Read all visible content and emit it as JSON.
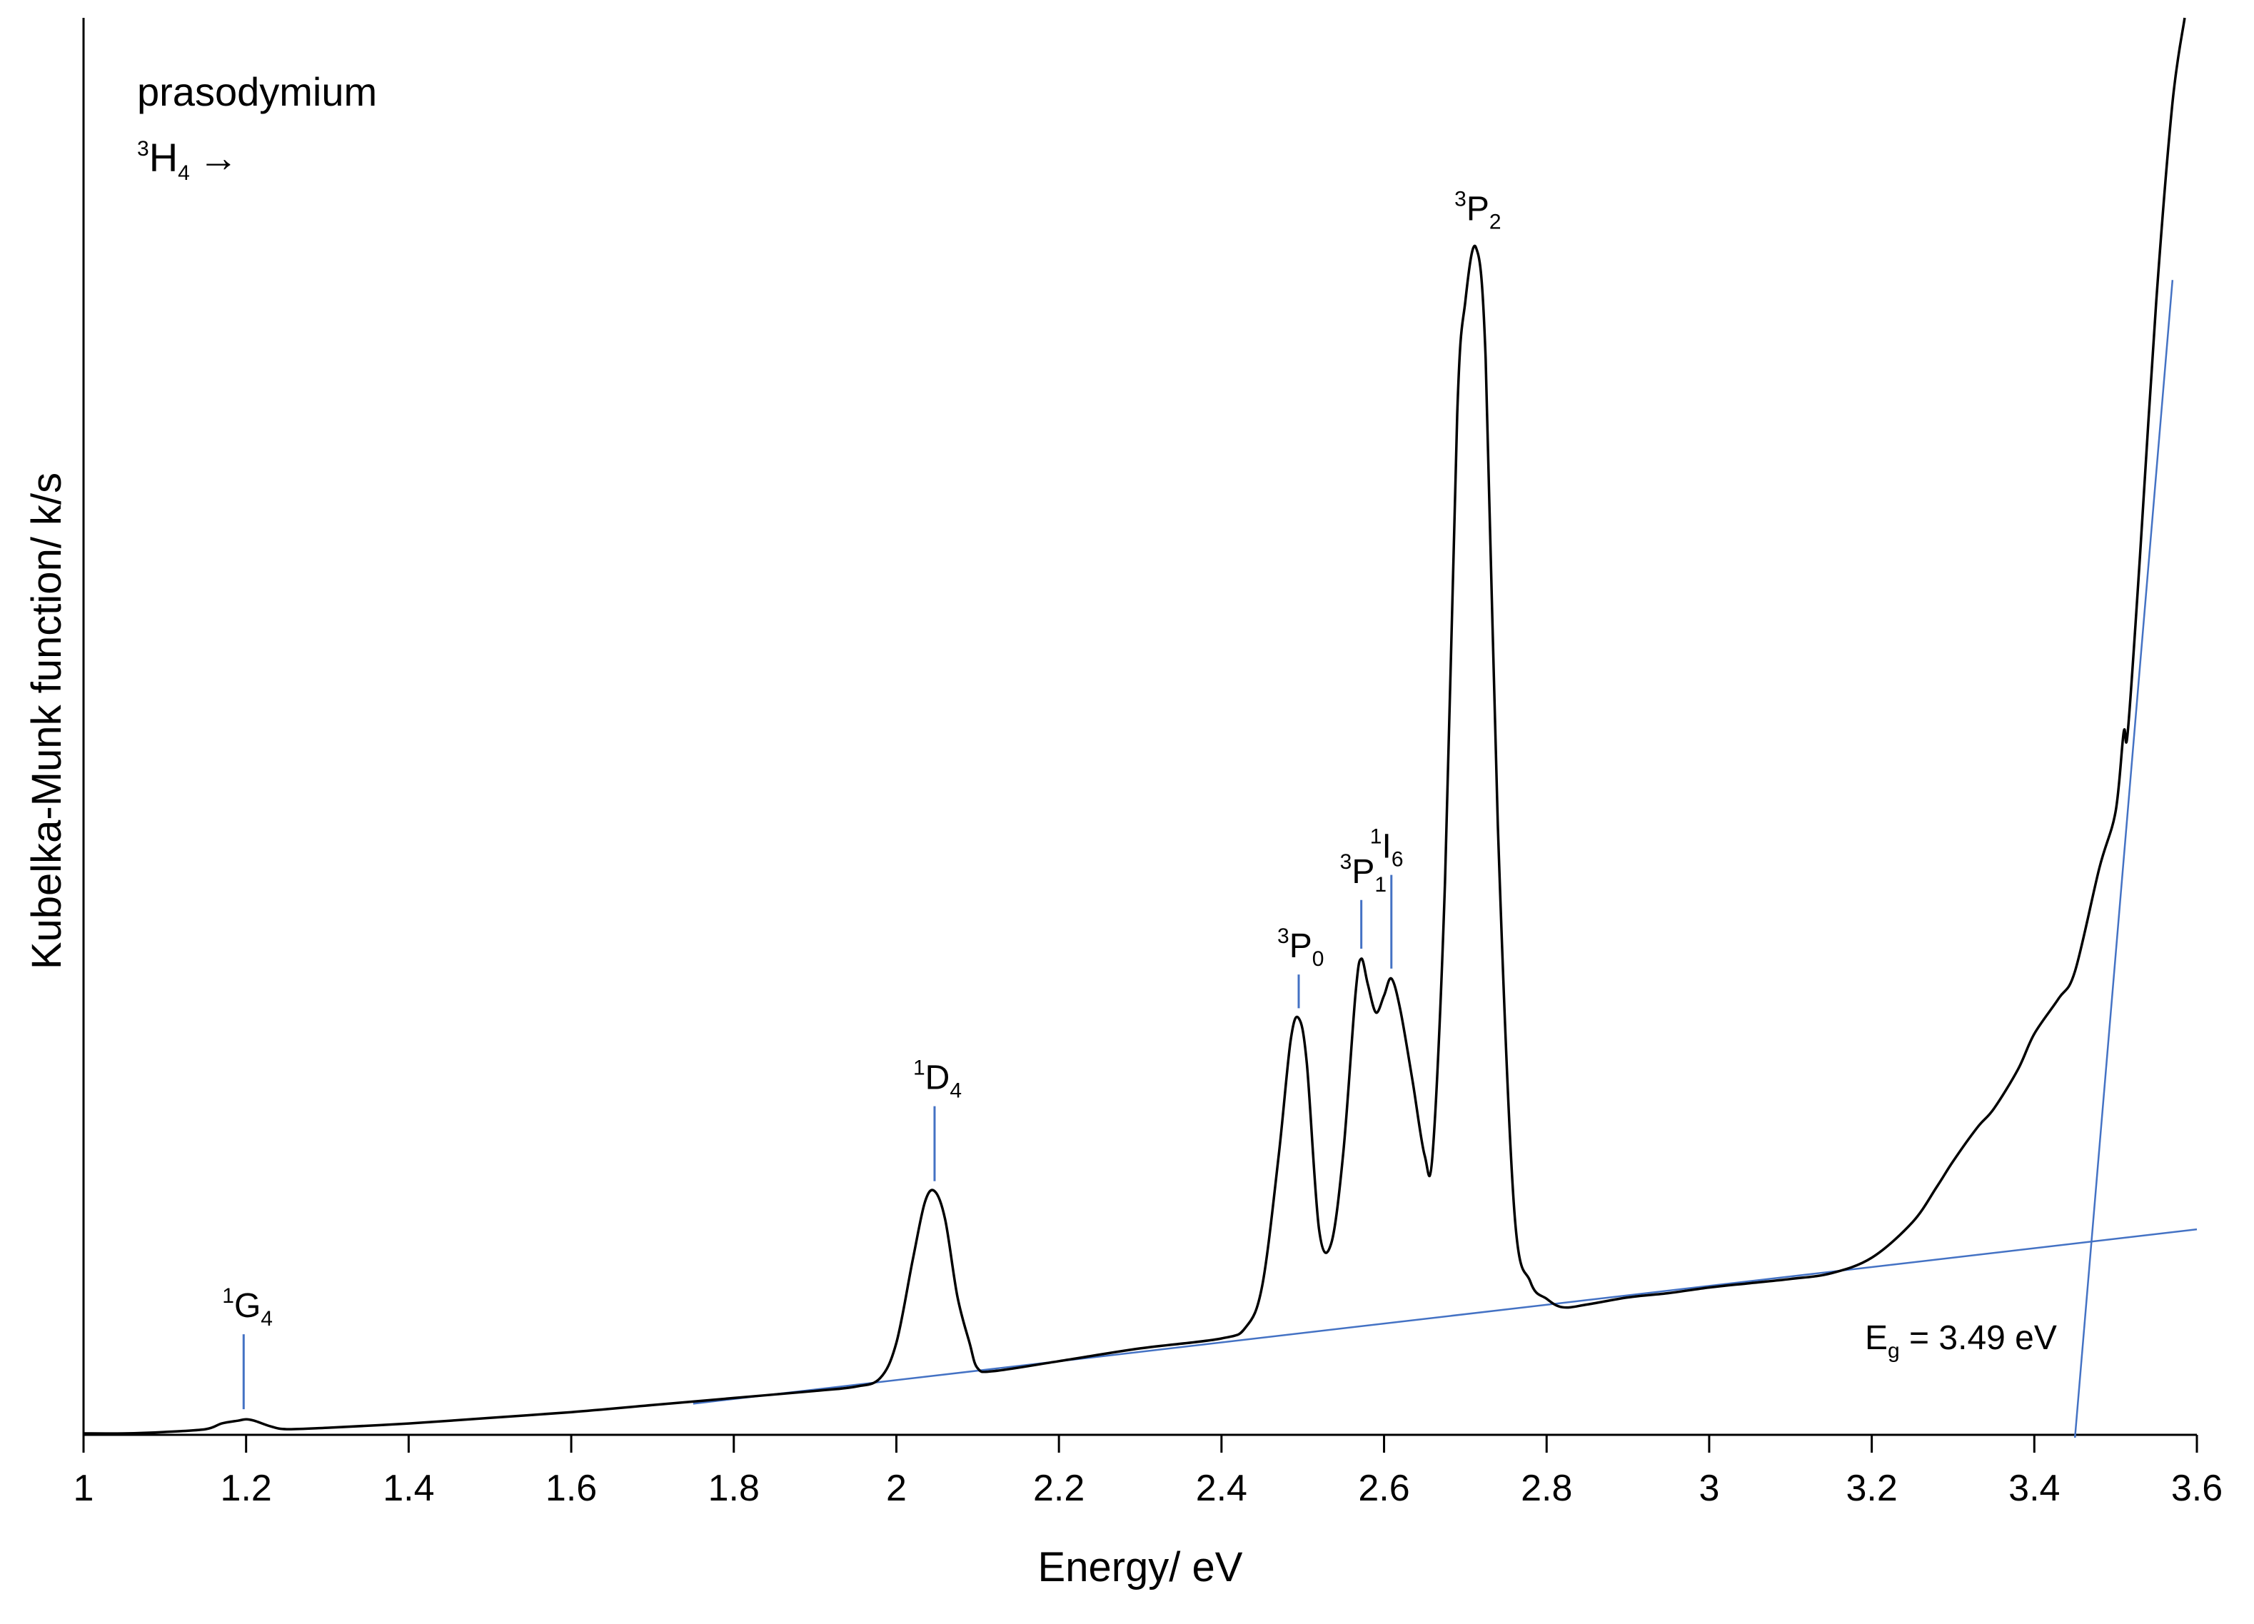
{
  "chart_data": {
    "type": "line",
    "xlabel": "Energy/ eV",
    "ylabel": "Kubelka-Munk function/ k/s",
    "xlim": [
      1,
      3.6
    ],
    "x_ticks": [
      "1",
      "1.2",
      "1.4",
      "1.6",
      "1.8",
      "2",
      "2.2",
      "2.4",
      "2.6",
      "2.8",
      "3",
      "3.2",
      "3.4",
      "3.6"
    ],
    "y_tick_labels": "none",
    "grid": false,
    "legend": "none",
    "annotation_text": {
      "sample": "prasodymium",
      "ground_state": {
        "sup": "3",
        "base": "H",
        "sub": "4",
        "arrow": "→"
      },
      "band_gap": {
        "base": "E",
        "sub": "g",
        "value": " = 3.49 eV"
      }
    },
    "transitions": [
      {
        "sup": "1",
        "base": "G",
        "sub": "4",
        "energy": 1.197,
        "peak_y": 0.011
      },
      {
        "sup": "1",
        "base": "D",
        "sub": "4",
        "energy": 2.047,
        "peak_y": 0.172
      },
      {
        "sup": "3",
        "base": "P",
        "sub": "0",
        "energy": 2.495,
        "peak_y": 0.294
      },
      {
        "sup": "3",
        "base": "P",
        "sub": "1",
        "energy": 2.572,
        "peak_y": 0.336
      },
      {
        "sup": "1",
        "base": "I",
        "sub": "6",
        "energy": 2.609,
        "peak_y": 0.322
      },
      {
        "sup": "3",
        "base": "P",
        "sub": "2",
        "energy": 2.713,
        "peak_y": 0.838
      }
    ],
    "series": [
      {
        "color": "#000000",
        "x": [
          1.0,
          1.05,
          1.1,
          1.15,
          1.17,
          1.19,
          1.2,
          1.21,
          1.23,
          1.25,
          1.3,
          1.4,
          1.5,
          1.6,
          1.7,
          1.8,
          1.9,
          1.95,
          1.98,
          2.0,
          2.02,
          2.035,
          2.047,
          2.06,
          2.075,
          2.09,
          2.1,
          2.12,
          2.2,
          2.3,
          2.4,
          2.43,
          2.45,
          2.47,
          2.485,
          2.495,
          2.505,
          2.52,
          2.535,
          2.55,
          2.565,
          2.572,
          2.58,
          2.59,
          2.6,
          2.609,
          2.62,
          2.635,
          2.65,
          2.66,
          2.675,
          2.69,
          2.7,
          2.713,
          2.725,
          2.74,
          2.76,
          2.78,
          2.8,
          2.82,
          2.85,
          2.9,
          2.95,
          3.0,
          3.05,
          3.1,
          3.15,
          3.2,
          3.25,
          3.28,
          3.3,
          3.33,
          3.35,
          3.38,
          3.4,
          3.43,
          3.45,
          3.48,
          3.5,
          3.51,
          3.515,
          3.53,
          3.55,
          3.57,
          3.585
        ],
        "y": [
          0.001,
          0.001,
          0.002,
          0.004,
          0.008,
          0.01,
          0.011,
          0.01,
          0.006,
          0.004,
          0.005,
          0.008,
          0.012,
          0.016,
          0.021,
          0.026,
          0.031,
          0.034,
          0.04,
          0.065,
          0.123,
          0.164,
          0.172,
          0.152,
          0.098,
          0.065,
          0.047,
          0.045,
          0.052,
          0.061,
          0.068,
          0.076,
          0.105,
          0.195,
          0.278,
          0.294,
          0.262,
          0.145,
          0.135,
          0.2,
          0.312,
          0.336,
          0.318,
          0.298,
          0.31,
          0.322,
          0.3,
          0.25,
          0.197,
          0.2,
          0.39,
          0.72,
          0.8,
          0.838,
          0.76,
          0.43,
          0.16,
          0.108,
          0.096,
          0.09,
          0.092,
          0.097,
          0.1,
          0.104,
          0.107,
          0.11,
          0.114,
          0.125,
          0.15,
          0.175,
          0.193,
          0.217,
          0.23,
          0.258,
          0.283,
          0.308,
          0.327,
          0.4,
          0.44,
          0.496,
          0.496,
          0.62,
          0.8,
          0.94,
          1.0
        ]
      }
    ],
    "fit_lines": [
      {
        "color": "#4472c4",
        "x": [
          1.75,
          3.6
        ],
        "y": [
          0.022,
          0.145
        ]
      },
      {
        "color": "#4472c4",
        "x": [
          3.45,
          3.57
        ],
        "y": [
          -0.002,
          0.815
        ]
      }
    ]
  }
}
